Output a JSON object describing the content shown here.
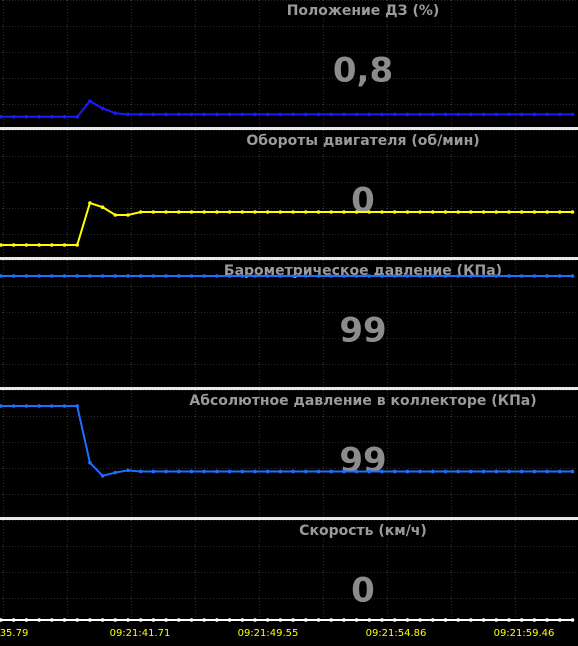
{
  "panels": [
    {
      "title": "Положение ДЗ  (%)",
      "value": "0,8",
      "color": "#1a1aff",
      "ylim": [
        0,
        10
      ],
      "values": [
        0.6,
        0.6,
        0.6,
        0.6,
        0.6,
        0.6,
        0.6,
        1.9,
        1.3,
        0.9,
        0.8,
        0.8,
        0.8,
        0.8,
        0.8,
        0.8,
        0.8,
        0.8,
        0.8,
        0.8,
        0.8,
        0.8,
        0.8,
        0.8,
        0.8,
        0.8,
        0.8,
        0.8,
        0.8,
        0.8,
        0.8,
        0.8,
        0.8,
        0.8,
        0.8,
        0.8,
        0.8,
        0.8,
        0.8,
        0.8,
        0.8,
        0.8,
        0.8,
        0.8,
        0.8,
        0.8
      ]
    },
    {
      "title": "Обороты двигателя  (об/мин)",
      "value": "0",
      "color": "#ffff00",
      "ylim": [
        0,
        2000
      ],
      "values": [
        150,
        150,
        150,
        150,
        150,
        150,
        150,
        850,
        780,
        650,
        650,
        700,
        700,
        700,
        700,
        700,
        700,
        700,
        700,
        700,
        700,
        700,
        700,
        700,
        700,
        700,
        700,
        700,
        700,
        700,
        700,
        700,
        700,
        700,
        700,
        700,
        700,
        700,
        700,
        700,
        700,
        700,
        700,
        700,
        700,
        700
      ]
    },
    {
      "title": "Барометрическое давление  (КПа)",
      "value": "99",
      "color": "#1e6fff",
      "ylim": [
        0,
        110
      ],
      "values": [
        99,
        99,
        99,
        99,
        99,
        99,
        99,
        99,
        99,
        99,
        99,
        99,
        99,
        99,
        99,
        99,
        99,
        99,
        99,
        99,
        99,
        99,
        99,
        99,
        99,
        99,
        99,
        99,
        99,
        99,
        99,
        99,
        99,
        99,
        99,
        99,
        99,
        99,
        99,
        99,
        99,
        99,
        99,
        99,
        99,
        99
      ]
    },
    {
      "title": "Абсолютное давление в коллекторе  (КПа)",
      "value": "99",
      "color": "#1e6fff",
      "ylim": [
        0,
        110
      ],
      "values": [
        99,
        99,
        99,
        99,
        99,
        99,
        99,
        47,
        35,
        38,
        40,
        39,
        39,
        39,
        39,
        39,
        39,
        39,
        39,
        39,
        39,
        39,
        39,
        39,
        39,
        39,
        39,
        39,
        39,
        39,
        39,
        39,
        39,
        39,
        39,
        39,
        39,
        39,
        39,
        39,
        39,
        39,
        39,
        39,
        39,
        39
      ]
    },
    {
      "title": "Скорость  (км/ч)",
      "value": "0",
      "color": "#ffffff",
      "ylim": [
        0,
        100
      ],
      "values": [
        0,
        0,
        0,
        0,
        0,
        0,
        0,
        0,
        0,
        0,
        0,
        0,
        0,
        0,
        0,
        0,
        0,
        0,
        0,
        0,
        0,
        0,
        0,
        0,
        0,
        0,
        0,
        0,
        0,
        0,
        0,
        0,
        0,
        0,
        0,
        0,
        0,
        0,
        0,
        0,
        0,
        0,
        0,
        0,
        0,
        0
      ]
    }
  ],
  "time_labels": [
    "35.79",
    "09:21:41.71",
    "09:21:49.55",
    "09:21:54.86",
    "09:21:59.46"
  ]
}
